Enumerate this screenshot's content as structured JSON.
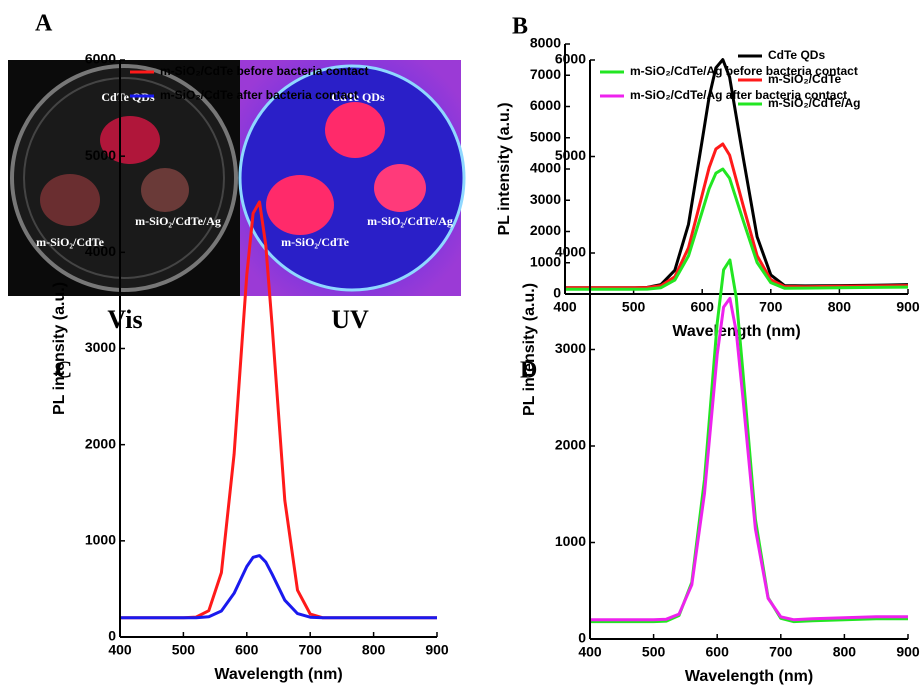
{
  "panel_a": {
    "label": "A",
    "vis": {
      "labels": [
        "CdTe QDs",
        "m-SiO₂/CdTe/Ag",
        "m-SiO₂/CdTe"
      ],
      "caption": "Vis"
    },
    "uv": {
      "labels": [
        "CdTe QDs",
        "m-SiO₂/CdTe/Ag",
        "m-SiO₂/CdTe"
      ],
      "caption": "UV"
    }
  },
  "chart_data": [
    {
      "type": "line",
      "panel": "B",
      "xlabel": "Wavelength (nm)",
      "ylabel": "PL intensity (a.u.)",
      "x": [
        400,
        450,
        500,
        520,
        540,
        560,
        580,
        600,
        610,
        620,
        630,
        640,
        660,
        680,
        700,
        720,
        750,
        800,
        850,
        900
      ],
      "xlim": [
        400,
        900
      ],
      "xticks": [
        400,
        500,
        600,
        700,
        800,
        900
      ],
      "ylim": [
        0,
        8000
      ],
      "yticks": [
        0,
        1000,
        2000,
        3000,
        4000,
        5000,
        6000,
        7000,
        8000
      ],
      "legend": "upper right",
      "series": [
        {
          "name": "CdTe QDs",
          "color": "#000000",
          "values": [
            200,
            200,
            200,
            211,
            300,
            760,
            2230,
            4920,
            6300,
            7240,
            7500,
            6940,
            4330,
            1830,
            610,
            270,
            260,
            270,
            280,
            300
          ]
        },
        {
          "name": "m-SiO₂/CdTe",
          "color": "#ff1a1a",
          "values": [
            200,
            200,
            200,
            207,
            262,
            552,
            1479,
            3176,
            4041,
            4639,
            4800,
            4446,
            2804,
            1226,
            458,
            241,
            230,
            250,
            260,
            270
          ]
        },
        {
          "name": "m-SiO₂/CdTe/Ag",
          "color": "#22e622",
          "values": [
            150,
            150,
            150,
            156,
            202,
            445,
            1220,
            2641,
            3365,
            3865,
            4000,
            3704,
            2329,
            1009,
            366,
            185,
            190,
            200,
            210,
            220
          ]
        }
      ]
    },
    {
      "type": "line",
      "panel": "C",
      "xlabel": "Wavelength (nm)",
      "ylabel": "PL intensity (a.u.)",
      "x": [
        400,
        450,
        500,
        520,
        540,
        560,
        580,
        600,
        610,
        620,
        630,
        640,
        660,
        680,
        700,
        720,
        750,
        800,
        850,
        900
      ],
      "xlim": [
        400,
        900
      ],
      "xticks": [
        400,
        500,
        600,
        700,
        800,
        900
      ],
      "ylim": [
        0,
        6000
      ],
      "yticks": [
        0,
        1000,
        2000,
        3000,
        4000,
        5000,
        6000
      ],
      "legend": "upper left",
      "series": [
        {
          "name": "m-SiO₂/CdTe before bacteria contact",
          "color": "#ff1a1a",
          "values": [
            200,
            200,
            200,
            207,
            274,
            670,
            1901,
            3767,
            4406,
            4524,
            4072,
            3228,
            1422,
            487,
            239,
            200,
            200,
            200,
            200,
            200
          ]
        },
        {
          "name": "m-SiO₂/CdTe after bacteria contact",
          "color": "#1a1aee",
          "values": [
            200,
            200,
            200,
            201,
            211,
            270,
            454,
            733,
            829,
            846,
            779,
            652,
            383,
            243,
            206,
            200,
            200,
            200,
            200,
            200
          ]
        }
      ]
    },
    {
      "type": "line",
      "panel": "D",
      "xlabel": "Wavelength (nm)",
      "ylabel": "PL intensity (a.u.)",
      "x": [
        400,
        450,
        500,
        520,
        540,
        560,
        580,
        600,
        610,
        620,
        630,
        640,
        660,
        680,
        700,
        720,
        750,
        800,
        850,
        900
      ],
      "xlim": [
        400,
        900
      ],
      "xticks": [
        400,
        500,
        600,
        700,
        800,
        900
      ],
      "ylim": [
        0,
        6000
      ],
      "yticks": [
        0,
        1000,
        2000,
        3000,
        4000,
        5000,
        6000
      ],
      "legend": "upper left",
      "series": [
        {
          "name": "m-SiO₂/CdTe/Ag before bacteria contact",
          "color": "#22e622",
          "values": [
            180,
            180,
            180,
            186,
            244,
            587,
            1654,
            3271,
            3826,
            3927,
            3535,
            2804,
            1239,
            429,
            214,
            180,
            190,
            200,
            210,
            210
          ]
        },
        {
          "name": "m-SiO₂/CdTe/Ag after bacteria contact",
          "color": "#ee22ee",
          "values": [
            200,
            200,
            200,
            205,
            257,
            562,
            1510,
            2947,
            3439,
            3530,
            3182,
            2532,
            1141,
            421,
            230,
            200,
            210,
            220,
            230,
            230
          ]
        }
      ]
    }
  ]
}
